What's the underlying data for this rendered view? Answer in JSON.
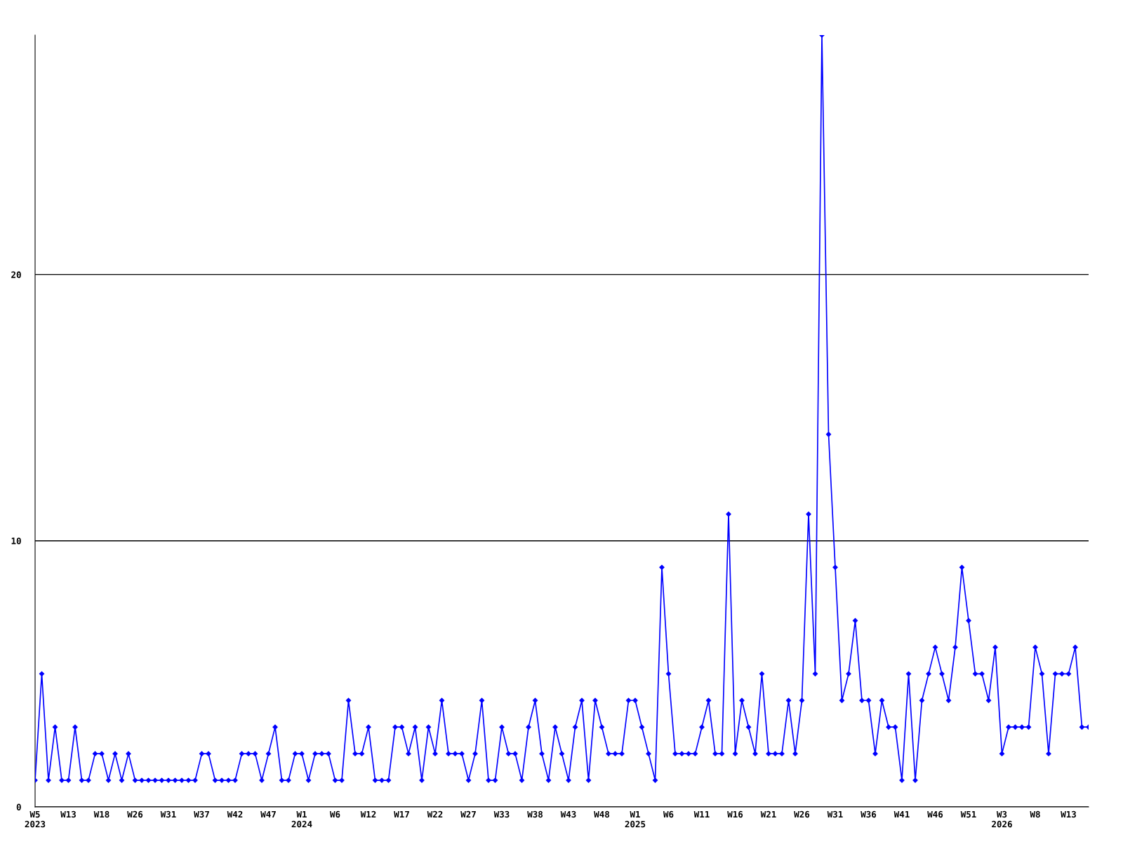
{
  "chart_data": {
    "type": "line",
    "categories": [
      "W5\n2023",
      null,
      null,
      null,
      null,
      "W13",
      null,
      null,
      null,
      null,
      "W18",
      null,
      null,
      null,
      null,
      "W26",
      null,
      null,
      null,
      null,
      "W31",
      null,
      null,
      null,
      null,
      "W37",
      null,
      null,
      null,
      null,
      "W42",
      null,
      null,
      null,
      null,
      "W47",
      null,
      null,
      null,
      null,
      "W1\n2024",
      null,
      null,
      null,
      null,
      "W6",
      null,
      null,
      null,
      null,
      "W12",
      null,
      null,
      null,
      null,
      "W17",
      null,
      null,
      null,
      null,
      "W22",
      null,
      null,
      null,
      null,
      "W27",
      null,
      null,
      null,
      null,
      "W33",
      null,
      null,
      null,
      null,
      "W38",
      null,
      null,
      null,
      null,
      "W43",
      null,
      null,
      null,
      null,
      "W48",
      null,
      null,
      null,
      null,
      "W1\n2025",
      null,
      null,
      null,
      null,
      "W6",
      null,
      null,
      null,
      null,
      "W11",
      null,
      null,
      null,
      null,
      "W16",
      null,
      null,
      null,
      null,
      "W21",
      null,
      null,
      null,
      null,
      "W26",
      null,
      null,
      null,
      null,
      "W31",
      null,
      null,
      null,
      null,
      "W36",
      null,
      null,
      null,
      null,
      "W41",
      null,
      null,
      null,
      null,
      "W46",
      null,
      null,
      null,
      null,
      "W51",
      null,
      null,
      null,
      null,
      "W3\n2026",
      null,
      null,
      null,
      null,
      "W8",
      null,
      null,
      null,
      null,
      "W13",
      null,
      null,
      null
    ],
    "series": [
      {
        "color": "#0000ff",
        "values": [
          1,
          5,
          1,
          3,
          1,
          1,
          3,
          1,
          1,
          2,
          2,
          1,
          2,
          1,
          2,
          1,
          1,
          1,
          1,
          1,
          1,
          1,
          1,
          1,
          1,
          2,
          2,
          1,
          1,
          1,
          1,
          2,
          2,
          2,
          1,
          2,
          3,
          1,
          1,
          2,
          2,
          1,
          2,
          2,
          2,
          1,
          1,
          4,
          2,
          2,
          3,
          1,
          1,
          1,
          3,
          3,
          2,
          3,
          1,
          3,
          2,
          4,
          2,
          2,
          2,
          1,
          2,
          4,
          1,
          1,
          3,
          2,
          2,
          1,
          3,
          4,
          2,
          1,
          3,
          2,
          1,
          3,
          4,
          1,
          4,
          3,
          2,
          2,
          2,
          4,
          4,
          3,
          2,
          1,
          9,
          5,
          2,
          2,
          2,
          2,
          3,
          4,
          2,
          2,
          11,
          2,
          4,
          3,
          2,
          5,
          2,
          2,
          2,
          4,
          2,
          4,
          11,
          5,
          29,
          14,
          9,
          4,
          5,
          7,
          4,
          4,
          2,
          4,
          3,
          3,
          1,
          5,
          1,
          4,
          5,
          6,
          5,
          4,
          6,
          9,
          7,
          5,
          5,
          4,
          6,
          2,
          3,
          3,
          3,
          3,
          6,
          5,
          2,
          5,
          5,
          5,
          6,
          3,
          3
        ]
      }
    ],
    "ylim": [
      0,
      29
    ],
    "yticks": [
      0,
      10,
      20
    ],
    "grid": "y",
    "marker": "diamond",
    "line_style": "solid"
  }
}
